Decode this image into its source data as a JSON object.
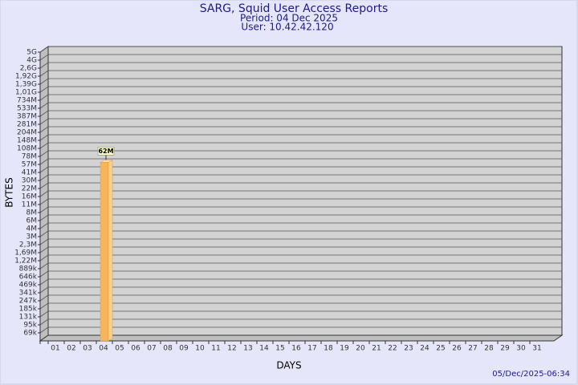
{
  "chart_data": {
    "type": "bar",
    "title": "SARG, Squid User Access Reports",
    "subtitle": "Period: 04 Dec 2025",
    "user": "User: 10.42.42.120",
    "x_label": "DAYS",
    "y_label": "BYTES",
    "timestamp": "05/Dec/2025-06:34",
    "categories": [
      "01",
      "02",
      "03",
      "04",
      "05",
      "06",
      "07",
      "08",
      "09",
      "10",
      "11",
      "12",
      "13",
      "14",
      "15",
      "16",
      "17",
      "18",
      "19",
      "20",
      "21",
      "22",
      "23",
      "24",
      "25",
      "26",
      "27",
      "28",
      "29",
      "30",
      "31"
    ],
    "values": [
      null,
      null,
      null,
      62000000,
      null,
      null,
      null,
      null,
      null,
      null,
      null,
      null,
      null,
      null,
      null,
      null,
      null,
      null,
      null,
      null,
      null,
      null,
      null,
      null,
      null,
      null,
      null,
      null,
      null,
      null,
      null
    ],
    "value_labels": [
      null,
      null,
      null,
      "62M",
      null,
      null,
      null,
      null,
      null,
      null,
      null,
      null,
      null,
      null,
      null,
      null,
      null,
      null,
      null,
      null,
      null,
      null,
      null,
      null,
      null,
      null,
      null,
      null,
      null,
      null,
      null
    ],
    "color": "#f7b55a",
    "log_scale": true,
    "grid": true,
    "ylim": [
      50000,
      5000000000
    ],
    "yticks": [
      {
        "value": 69000,
        "label": "69k"
      },
      {
        "value": 95000,
        "label": "95k"
      },
      {
        "value": 131000,
        "label": "131k"
      },
      {
        "value": 185000,
        "label": "185k"
      },
      {
        "value": 247000,
        "label": "247k"
      },
      {
        "value": 341000,
        "label": "341k"
      },
      {
        "value": 469000,
        "label": "469k"
      },
      {
        "value": 646000,
        "label": "646k"
      },
      {
        "value": 889000,
        "label": "889k"
      },
      {
        "value": 1220000,
        "label": "1,22M"
      },
      {
        "value": 1690000,
        "label": "1,69M"
      },
      {
        "value": 2300000,
        "label": "2,3M"
      },
      {
        "value": 3000000,
        "label": "3M"
      },
      {
        "value": 4000000,
        "label": "4M"
      },
      {
        "value": 6000000,
        "label": "6M"
      },
      {
        "value": 8000000,
        "label": "8M"
      },
      {
        "value": 11000000,
        "label": "11M"
      },
      {
        "value": 16000000,
        "label": "16M"
      },
      {
        "value": 22000000,
        "label": "22M"
      },
      {
        "value": 30000000,
        "label": "30M"
      },
      {
        "value": 41000000,
        "label": "41M"
      },
      {
        "value": 57000000,
        "label": "57M"
      },
      {
        "value": 78000000,
        "label": "78M"
      },
      {
        "value": 108000000,
        "label": "108M"
      },
      {
        "value": 148000000,
        "label": "148M"
      },
      {
        "value": 204000000,
        "label": "204M"
      },
      {
        "value": 281000000,
        "label": "281M"
      },
      {
        "value": 387000000,
        "label": "387M"
      },
      {
        "value": 533000000,
        "label": "533M"
      },
      {
        "value": 734000000,
        "label": "734M"
      },
      {
        "value": 1010000000,
        "label": "1,01G"
      },
      {
        "value": 1390000000,
        "label": "1,39G"
      },
      {
        "value": 1920000000,
        "label": "1,92G"
      },
      {
        "value": 2600000000,
        "label": "2,6G"
      },
      {
        "value": 4000000000,
        "label": "4G"
      },
      {
        "value": 5000000000,
        "label": "5G"
      }
    ]
  }
}
